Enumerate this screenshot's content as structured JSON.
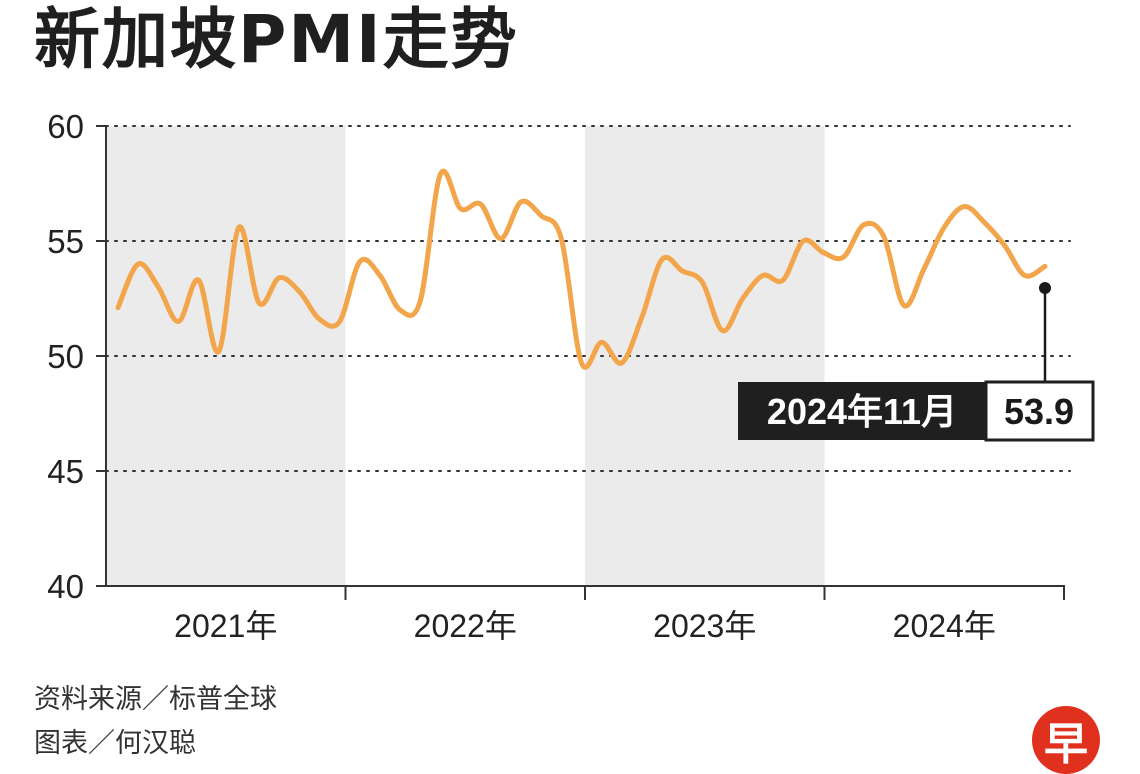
{
  "title": "新加坡PMI走势",
  "source": "资料来源／标普全球",
  "credit": "图表／何汉聪",
  "logo_text": "早",
  "colors": {
    "line": "#f2a54a",
    "band": "#ebebeb",
    "axis": "#333333",
    "callout_bg": "#1f1f1f",
    "logo": "#e0301e"
  },
  "chart_data": {
    "type": "line",
    "title": "新加坡PMI走势",
    "xlabel": "",
    "ylabel": "",
    "ylim": [
      40,
      60
    ],
    "yticks": [
      40,
      45,
      50,
      55,
      60
    ],
    "ytick_labels": [
      "40",
      "45",
      "50",
      "55",
      "60"
    ],
    "grid": "dotted horizontal at each y tick",
    "year_labels": [
      "2021年",
      "2022年",
      "2023年",
      "2024年"
    ],
    "shaded_years": [
      "2021年",
      "2023年"
    ],
    "x": [
      "2021-01",
      "2021-02",
      "2021-03",
      "2021-04",
      "2021-05",
      "2021-06",
      "2021-07",
      "2021-08",
      "2021-09",
      "2021-10",
      "2021-11",
      "2021-12",
      "2022-01",
      "2022-02",
      "2022-03",
      "2022-04",
      "2022-05",
      "2022-06",
      "2022-07",
      "2022-08",
      "2022-09",
      "2022-10",
      "2022-11",
      "2022-12",
      "2023-01",
      "2023-02",
      "2023-03",
      "2023-04",
      "2023-05",
      "2023-06",
      "2023-07",
      "2023-08",
      "2023-09",
      "2023-10",
      "2023-11",
      "2023-12",
      "2024-01",
      "2024-02",
      "2024-03",
      "2024-04",
      "2024-05",
      "2024-06",
      "2024-07",
      "2024-08",
      "2024-09",
      "2024-10",
      "2024-11"
    ],
    "values": [
      52.1,
      54.0,
      53.0,
      51.5,
      53.3,
      50.2,
      55.6,
      52.3,
      53.4,
      52.8,
      51.6,
      51.5,
      54.1,
      53.5,
      52.0,
      52.4,
      57.9,
      56.4,
      56.6,
      55.1,
      56.7,
      56.1,
      55.1,
      49.7,
      50.6,
      49.7,
      51.7,
      54.2,
      53.7,
      53.2,
      51.1,
      52.5,
      53.5,
      53.3,
      55.0,
      54.5,
      54.3,
      55.7,
      55.2,
      52.2,
      53.8,
      55.6,
      56.5,
      55.8,
      54.8,
      53.5,
      53.9
    ],
    "annotation": {
      "label": "2024年11月",
      "value": "53.9"
    }
  }
}
